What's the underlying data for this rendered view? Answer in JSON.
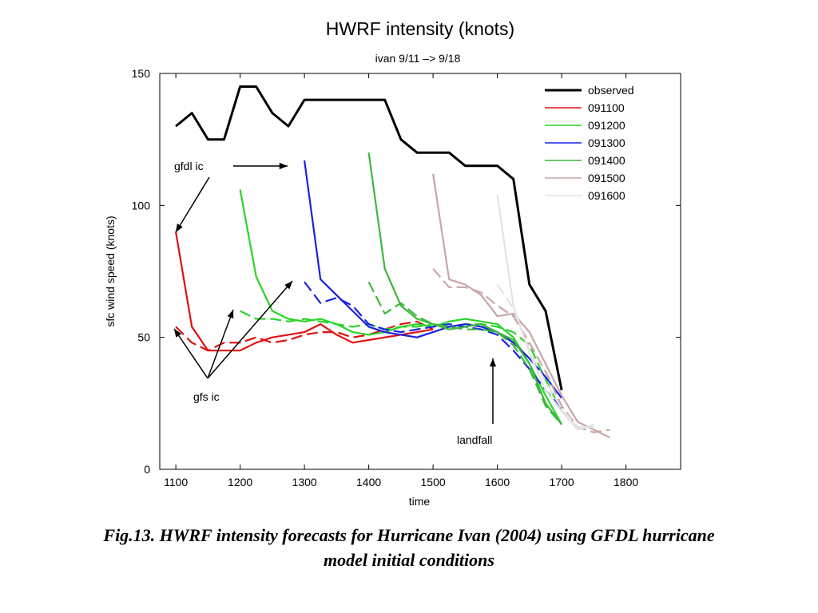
{
  "chart_data": {
    "type": "line",
    "title": "HWRF  intensity (knots)",
    "subtitle": "ivan   9/11   –> 9/18",
    "xlabel": "time",
    "ylabel": "sfc wind speed (knots)",
    "xlim": [
      1075,
      1885
    ],
    "ylim": [
      0,
      150
    ],
    "xticks": [
      "1100",
      "1200",
      "1300",
      "1400",
      "1500",
      "1600",
      "1700",
      "1800"
    ],
    "yticks": [
      "0",
      "50",
      "100",
      "150"
    ],
    "legend_position": "top-right",
    "series": [
      {
        "name": "observed",
        "color": "#000000",
        "style": "solid",
        "x": [
          1100,
          1125,
          1150,
          1175,
          1200,
          1225,
          1250,
          1275,
          1300,
          1325,
          1350,
          1375,
          1400,
          1425,
          1450,
          1475,
          1500,
          1525,
          1550,
          1575,
          1600,
          1625,
          1650,
          1675,
          1700
        ],
        "y": [
          130,
          135,
          125,
          125,
          145,
          145,
          135,
          130,
          140,
          140,
          140,
          140,
          140,
          140,
          125,
          120,
          120,
          120,
          115,
          115,
          115,
          110,
          70,
          60,
          30
        ]
      },
      {
        "name": "091100",
        "color": "#e01010",
        "style": "solid",
        "x": [
          1100,
          1125,
          1150,
          1175,
          1200,
          1225,
          1250,
          1275,
          1300,
          1325,
          1350,
          1375,
          1400,
          1425,
          1450,
          1475,
          1500
        ],
        "y": [
          90,
          54,
          45,
          45,
          45,
          48,
          50,
          51,
          52,
          55,
          51,
          48,
          49,
          50,
          51,
          52,
          53
        ]
      },
      {
        "name": "091100",
        "color": "#e01010",
        "style": "dashed",
        "x": [
          1100,
          1125,
          1150,
          1175,
          1200,
          1225,
          1250,
          1275,
          1300,
          1325,
          1350,
          1375,
          1400,
          1425,
          1450,
          1475,
          1500
        ],
        "y": [
          54,
          48,
          45,
          48,
          48,
          50,
          48,
          49,
          51,
          52,
          52,
          50,
          51,
          53,
          55,
          56,
          53
        ]
      },
      {
        "name": "091200",
        "color": "#2ad42a",
        "style": "solid",
        "x": [
          1200,
          1225,
          1250,
          1275,
          1300,
          1325,
          1350,
          1375,
          1400,
          1425,
          1450,
          1475,
          1500,
          1525,
          1550,
          1575,
          1600,
          1625,
          1650,
          1675,
          1700
        ],
        "y": [
          106,
          73,
          60,
          57,
          56,
          57,
          55,
          52,
          51,
          52,
          54,
          55,
          54,
          56,
          57,
          56,
          55,
          50,
          40,
          28,
          17
        ]
      },
      {
        "name": "091200",
        "color": "#2ad42a",
        "style": "dashed",
        "x": [
          1200,
          1225,
          1250,
          1275,
          1300,
          1325,
          1350,
          1375,
          1400,
          1425,
          1450,
          1475,
          1500,
          1525,
          1550,
          1575,
          1600,
          1625,
          1650,
          1675,
          1700
        ],
        "y": [
          60,
          57,
          57,
          56,
          57,
          56,
          55,
          54,
          55,
          53,
          54,
          54,
          55,
          54,
          55,
          55,
          54,
          52,
          47,
          34,
          22
        ]
      },
      {
        "name": "091300",
        "color": "#1a22e0",
        "style": "solid",
        "x": [
          1300,
          1325,
          1350,
          1375,
          1400,
          1425,
          1450,
          1475,
          1500,
          1525,
          1550,
          1575,
          1600,
          1625,
          1650,
          1675,
          1700
        ],
        "y": [
          117,
          72,
          66,
          60,
          54,
          52,
          51,
          50,
          52,
          54,
          55,
          54,
          52,
          48,
          42,
          35,
          27
        ]
      },
      {
        "name": "091300",
        "color": "#1a22e0",
        "style": "dashed",
        "x": [
          1300,
          1325,
          1350,
          1375,
          1400,
          1425,
          1450,
          1475,
          1500,
          1525,
          1550,
          1575,
          1600,
          1625,
          1650,
          1675,
          1700
        ],
        "y": [
          71,
          63,
          65,
          62,
          55,
          53,
          52,
          53,
          54,
          55,
          54,
          53,
          51,
          45,
          38,
          30,
          23
        ]
      },
      {
        "name": "091400",
        "color": "#3cb83c",
        "style": "solid",
        "x": [
          1400,
          1425,
          1450,
          1475,
          1500,
          1525,
          1550,
          1575,
          1600,
          1625,
          1650,
          1675,
          1700
        ],
        "y": [
          120,
          76,
          62,
          57,
          55,
          53,
          54,
          55,
          52,
          49,
          40,
          25,
          17
        ]
      },
      {
        "name": "091400",
        "color": "#3cb83c",
        "style": "dashed",
        "x": [
          1400,
          1425,
          1450,
          1475,
          1500,
          1525,
          1550,
          1575,
          1600,
          1625,
          1650,
          1675,
          1700
        ],
        "y": [
          71,
          59,
          63,
          58,
          55,
          54,
          53,
          53,
          52,
          47,
          38,
          24,
          17
        ]
      },
      {
        "name": "091500",
        "color": "#c8a6a6",
        "style": "solid",
        "x": [
          1500,
          1525,
          1550,
          1575,
          1600,
          1625,
          1650,
          1675,
          1700,
          1725,
          1750,
          1775
        ],
        "y": [
          112,
          72,
          70,
          66,
          58,
          59,
          52,
          40,
          28,
          18,
          15,
          12
        ]
      },
      {
        "name": "091500",
        "color": "#c8a6a6",
        "style": "dashed",
        "x": [
          1500,
          1525,
          1550,
          1575,
          1600,
          1625,
          1650,
          1675,
          1700,
          1725,
          1750,
          1775
        ],
        "y": [
          76,
          69,
          69,
          67,
          62,
          58,
          48,
          37,
          24,
          16,
          14,
          15
        ]
      },
      {
        "name": "091600",
        "color": "#e3e3e3",
        "style": "solid",
        "x": [
          1600,
          1625,
          1650,
          1675,
          1700,
          1725,
          1750
        ],
        "y": [
          104,
          62,
          44,
          30,
          22,
          15,
          17
        ]
      },
      {
        "name": "091600",
        "color": "#e3e3e3",
        "style": "dashed",
        "x": [
          1600,
          1625,
          1650,
          1675,
          1700,
          1725,
          1750
        ],
        "y": [
          70,
          61,
          45,
          33,
          23,
          16,
          16
        ]
      }
    ],
    "legend": [
      {
        "label": "observed",
        "color": "#000000",
        "width": 3
      },
      {
        "label": "091100",
        "color": "#e01010",
        "width": 1.5
      },
      {
        "label": "091200",
        "color": "#2ad42a",
        "width": 1.5
      },
      {
        "label": "091300",
        "color": "#1a22e0",
        "width": 1.5
      },
      {
        "label": "091400",
        "color": "#3cb83c",
        "width": 1.5
      },
      {
        "label": "091500",
        "color": "#c8a6a6",
        "width": 1.5
      },
      {
        "label": "091600",
        "color": "#e3e3e3",
        "width": 1.5
      }
    ],
    "annotations": {
      "gfdl_ic": "gfdl ic",
      "gfs_ic": "gfs ic",
      "landfall": "landfall"
    }
  },
  "caption": {
    "line1": "Fig.13. HWRF intensity forecasts for Hurricane Ivan (2004) using GFDL hurricane",
    "line2": "model initial conditions"
  }
}
